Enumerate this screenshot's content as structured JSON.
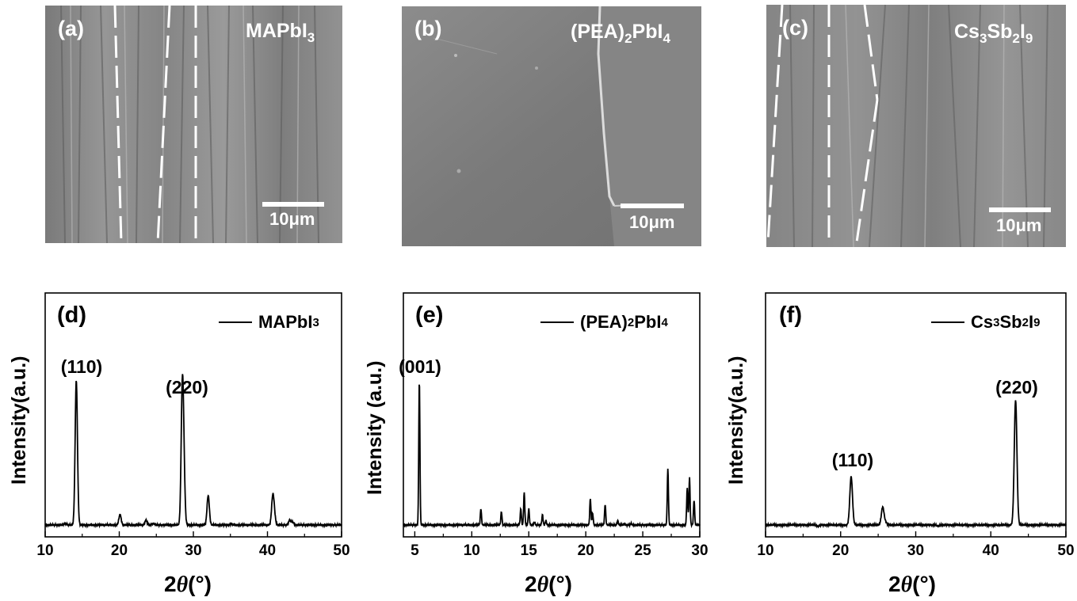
{
  "sem_panels": [
    {
      "label": "(a)",
      "material": {
        "base": "MAPbI",
        "sub": "3"
      },
      "scale": "10μm",
      "tone": "#8a8a8a"
    },
    {
      "label": "(b)",
      "material": {
        "prefix": "(PEA)",
        "sub1": "2",
        "mid": "PbI",
        "sub2": "4"
      },
      "scale": "10μm",
      "tone": "#7d7d7d"
    },
    {
      "label": "(c)",
      "material": {
        "a": "Cs",
        "s1": "3",
        "b": "Sb",
        "s2": "2",
        "c": "I",
        "s3": "9"
      },
      "scale": "10μm",
      "tone": "#8c8c8c"
    }
  ],
  "common": {
    "ylabel": "Intensity(a.u.)",
    "ylabel_spaced": "Intensity (a.u.)",
    "xlabel_prefix": "2",
    "xlabel_theta": "θ",
    "xlabel_unit": "(°)"
  },
  "chart_data": [
    {
      "type": "line",
      "panel": "(d)",
      "legend": "MAPbI3",
      "xlim": [
        10,
        50
      ],
      "xticks": [
        10,
        20,
        30,
        40,
        50
      ],
      "ylim": [
        0,
        1
      ],
      "baseline": 0.02,
      "peaks": [
        {
          "x": 12.7,
          "y": 0.03
        },
        {
          "x": 14.2,
          "y": 1.0
        },
        {
          "x": 20.1,
          "y": 0.09
        },
        {
          "x": 23.6,
          "y": 0.05
        },
        {
          "x": 24.6,
          "y": 0.03
        },
        {
          "x": 28.5,
          "y": 0.86
        },
        {
          "x": 28.7,
          "y": 0.38
        },
        {
          "x": 32.0,
          "y": 0.22
        },
        {
          "x": 35.1,
          "y": 0.03
        },
        {
          "x": 37.3,
          "y": 0.02
        },
        {
          "x": 40.7,
          "y": 0.19
        },
        {
          "x": 40.9,
          "y": 0.1
        },
        {
          "x": 43.0,
          "y": 0.05
        },
        {
          "x": 43.4,
          "y": 0.04
        },
        {
          "x": 46.0,
          "y": 0.02
        }
      ],
      "annotations": [
        {
          "text": "(110)",
          "x": 14.2
        },
        {
          "text": "(220)",
          "x": 28.5
        }
      ]
    },
    {
      "type": "line",
      "panel": "(e)",
      "legend": "(PEA)2PbI4",
      "xlim": [
        4,
        30
      ],
      "xticks": [
        5,
        10,
        15,
        20,
        25,
        30
      ],
      "ylim": [
        0,
        1
      ],
      "baseline": 0.02,
      "peaks": [
        {
          "x": 5.4,
          "y": 1.0
        },
        {
          "x": 10.8,
          "y": 0.13
        },
        {
          "x": 12.6,
          "y": 0.11
        },
        {
          "x": 14.3,
          "y": 0.13
        },
        {
          "x": 14.6,
          "y": 0.24
        },
        {
          "x": 15.0,
          "y": 0.13
        },
        {
          "x": 15.5,
          "y": 0.04
        },
        {
          "x": 16.2,
          "y": 0.09
        },
        {
          "x": 16.5,
          "y": 0.05
        },
        {
          "x": 20.4,
          "y": 0.2
        },
        {
          "x": 20.6,
          "y": 0.1
        },
        {
          "x": 21.7,
          "y": 0.16
        },
        {
          "x": 22.8,
          "y": 0.05
        },
        {
          "x": 23.4,
          "y": 0.03
        },
        {
          "x": 24.0,
          "y": 0.03
        },
        {
          "x": 25.0,
          "y": 0.02
        },
        {
          "x": 26.0,
          "y": 0.02
        },
        {
          "x": 27.2,
          "y": 0.4
        },
        {
          "x": 28.9,
          "y": 0.27
        },
        {
          "x": 29.1,
          "y": 0.34
        },
        {
          "x": 29.5,
          "y": 0.19
        }
      ],
      "annotations": [
        {
          "text": "(001)",
          "x": 5.4
        }
      ]
    },
    {
      "type": "line",
      "panel": "(f)",
      "legend": "Cs3Sb2I9",
      "xlim": [
        10,
        50
      ],
      "xticks": [
        10,
        20,
        30,
        40,
        50
      ],
      "ylim": [
        0,
        1
      ],
      "baseline": 0.02,
      "peaks": [
        {
          "x": 12.0,
          "y": 0.02
        },
        {
          "x": 17.0,
          "y": 0.01
        },
        {
          "x": 21.4,
          "y": 0.4
        },
        {
          "x": 25.6,
          "y": 0.16
        },
        {
          "x": 26.0,
          "y": 0.04
        },
        {
          "x": 33.0,
          "y": 0.01
        },
        {
          "x": 43.3,
          "y": 1.0
        }
      ],
      "annotations": [
        {
          "text": "(110)",
          "x": 21.4
        },
        {
          "text": "(220)",
          "x": 43.3
        }
      ]
    }
  ]
}
